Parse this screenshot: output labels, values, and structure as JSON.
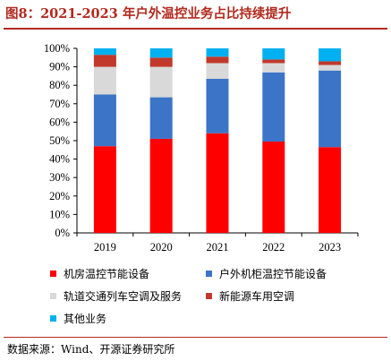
{
  "figure_title": "图8：2021-2023 年户外温控业务占比持续提升",
  "source": "数据来源：Wind、开源证券研究所",
  "chart_data": {
    "type": "bar",
    "stacked": true,
    "categories": [
      "2019",
      "2020",
      "2021",
      "2022",
      "2023"
    ],
    "ylim": [
      0,
      100
    ],
    "yticks": [
      "0%",
      "10%",
      "20%",
      "30%",
      "40%",
      "50%",
      "60%",
      "70%",
      "80%",
      "90%",
      "100%"
    ],
    "grid": false,
    "legend_position": "bottom",
    "series": [
      {
        "name": "机房温控节能设备",
        "color": "#ff0000",
        "values": [
          47,
          51,
          54,
          49.5,
          46.5
        ]
      },
      {
        "name": "户外机柜温控节能设备",
        "color": "#3c74c8",
        "values": [
          28,
          22.5,
          29.5,
          37.5,
          41.5
        ]
      },
      {
        "name": "轨道交通列车空调及服务",
        "color": "#d9d9d9",
        "values": [
          15,
          16.5,
          8.5,
          5,
          3
        ]
      },
      {
        "name": "新能源车用空调",
        "color": "#c0392b",
        "values": [
          6.5,
          5,
          3.5,
          2,
          2
        ]
      },
      {
        "name": "其他业务",
        "color": "#00b0f0",
        "values": [
          3.5,
          5,
          4.5,
          6,
          7
        ]
      }
    ]
  }
}
